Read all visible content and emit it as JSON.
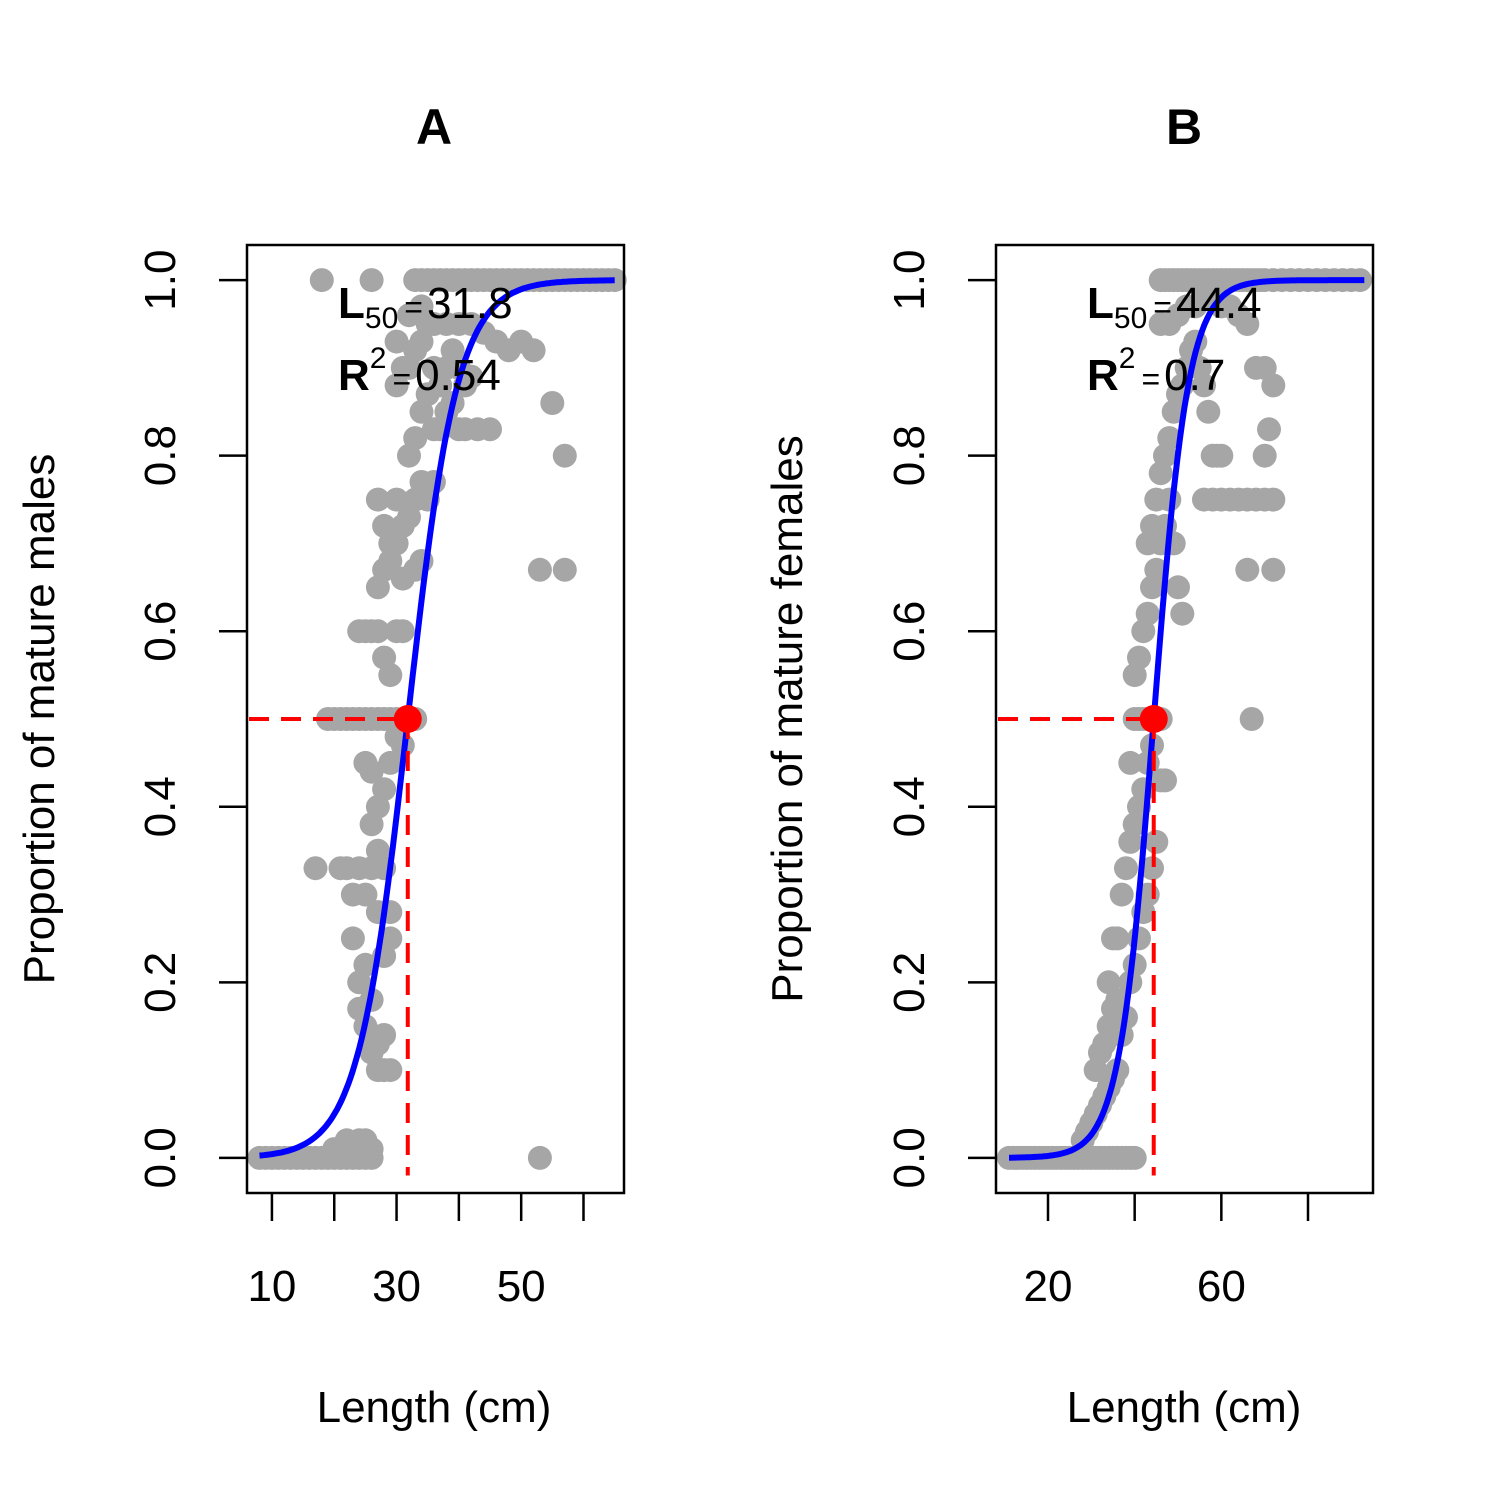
{
  "colors": {
    "points": "#a6a6a6",
    "curve": "#0000ff",
    "reference": "#ff0000",
    "frame": "#000000"
  },
  "chart_data": [
    {
      "type": "scatter",
      "title": "A",
      "xlabel": "Length (cm)",
      "ylabel": "Proportion of mature males",
      "xlim": [
        6,
        66.5
      ],
      "ylim": [
        -0.04,
        1.04
      ],
      "xticks": [
        10,
        20,
        30,
        40,
        50,
        60
      ],
      "xtick_labels": [
        "10",
        "",
        "30",
        "",
        "50",
        ""
      ],
      "yticks": [
        0.0,
        0.2,
        0.4,
        0.6,
        0.8,
        1.0
      ],
      "ytick_labels": [
        "0.0",
        "0.2",
        "0.4",
        "0.6",
        "0.8",
        "1.0"
      ],
      "grid": false,
      "annotation": {
        "l50_symbol": "L",
        "l50_subscript": "50",
        "l50_value": "31.8",
        "r2_symbol": "R",
        "r2_superscript": "2",
        "r2_value": "0.54",
        "equals": "="
      },
      "l50": 31.8,
      "logistic_fit": {
        "l50": 31.8,
        "slope": 0.25,
        "x_range": [
          8,
          65
        ]
      },
      "points": [
        [
          8,
          0
        ],
        [
          9,
          0
        ],
        [
          10,
          0
        ],
        [
          11,
          0
        ],
        [
          12,
          0
        ],
        [
          13,
          0
        ],
        [
          14,
          0
        ],
        [
          15,
          0
        ],
        [
          16,
          0
        ],
        [
          17,
          0
        ],
        [
          18,
          0
        ],
        [
          19,
          0
        ],
        [
          20,
          0
        ],
        [
          21,
          0
        ],
        [
          22,
          0
        ],
        [
          23,
          0
        ],
        [
          24,
          0
        ],
        [
          25,
          0
        ],
        [
          26,
          0
        ],
        [
          22,
          0.02
        ],
        [
          23,
          0.01
        ],
        [
          24,
          0.02
        ],
        [
          25,
          0.02
        ],
        [
          26,
          0.01
        ],
        [
          21,
          0.01
        ],
        [
          20,
          0.01
        ],
        [
          17,
          0.33
        ],
        [
          21,
          0.33
        ],
        [
          22,
          0.33
        ],
        [
          23,
          0.3
        ],
        [
          24,
          0.33
        ],
        [
          25,
          0.3
        ],
        [
          26,
          0.33
        ],
        [
          27,
          0.35
        ],
        [
          28,
          0.33
        ],
        [
          23,
          0.25
        ],
        [
          24,
          0.2
        ],
        [
          25,
          0.22
        ],
        [
          26,
          0.18
        ],
        [
          24,
          0.17
        ],
        [
          25,
          0.15
        ],
        [
          26,
          0.14
        ],
        [
          27,
          0.1
        ],
        [
          28,
          0.1
        ],
        [
          29,
          0.1
        ],
        [
          26,
          0.12
        ],
        [
          27,
          0.13
        ],
        [
          28,
          0.14
        ],
        [
          28,
          0.23
        ],
        [
          29,
          0.25
        ],
        [
          27,
          0.28
        ],
        [
          29,
          0.28
        ],
        [
          26,
          0.38
        ],
        [
          27,
          0.4
        ],
        [
          28,
          0.42
        ],
        [
          29,
          0.45
        ],
        [
          25,
          0.45
        ],
        [
          26,
          0.44
        ],
        [
          30,
          0.5
        ],
        [
          31,
          0.5
        ],
        [
          32,
          0.5
        ],
        [
          29,
          0.5
        ],
        [
          28,
          0.5
        ],
        [
          27,
          0.5
        ],
        [
          26,
          0.5
        ],
        [
          25,
          0.5
        ],
        [
          24,
          0.5
        ],
        [
          23,
          0.5
        ],
        [
          22,
          0.5
        ],
        [
          21,
          0.5
        ],
        [
          20,
          0.5
        ],
        [
          19,
          0.5
        ],
        [
          33,
          0.5
        ],
        [
          31,
          0.47
        ],
        [
          30,
          0.48
        ],
        [
          24,
          0.6
        ],
        [
          25,
          0.6
        ],
        [
          26,
          0.6
        ],
        [
          27,
          0.6
        ],
        [
          28,
          0.57
        ],
        [
          29,
          0.55
        ],
        [
          30,
          0.6
        ],
        [
          31,
          0.6
        ],
        [
          27,
          0.65
        ],
        [
          28,
          0.67
        ],
        [
          29,
          0.68
        ],
        [
          30,
          0.7
        ],
        [
          31,
          0.72
        ],
        [
          27,
          0.75
        ],
        [
          28,
          0.72
        ],
        [
          29,
          0.7
        ],
        [
          30,
          0.75
        ],
        [
          32,
          0.73
        ],
        [
          33,
          0.75
        ],
        [
          34,
          0.77
        ],
        [
          35,
          0.75
        ],
        [
          36,
          0.77
        ],
        [
          31,
          0.66
        ],
        [
          33,
          0.67
        ],
        [
          34,
          0.68
        ],
        [
          32,
          0.8
        ],
        [
          33,
          0.82
        ],
        [
          34,
          0.85
        ],
        [
          35,
          0.87
        ],
        [
          36,
          0.83
        ],
        [
          37,
          0.83
        ],
        [
          38,
          0.85
        ],
        [
          39,
          0.86
        ],
        [
          40,
          0.83
        ],
        [
          41,
          0.83
        ],
        [
          43,
          0.83
        ],
        [
          45,
          0.83
        ],
        [
          30,
          0.88
        ],
        [
          31,
          0.9
        ],
        [
          32,
          0.9
        ],
        [
          33,
          0.92
        ],
        [
          34,
          0.93
        ],
        [
          35,
          0.95
        ],
        [
          36,
          0.9
        ],
        [
          37,
          0.88
        ],
        [
          38,
          0.9
        ],
        [
          39,
          0.92
        ],
        [
          40,
          0.9
        ],
        [
          41,
          0.88
        ],
        [
          42,
          0.89
        ],
        [
          30,
          0.93
        ],
        [
          32,
          0.96
        ],
        [
          34,
          0.97
        ],
        [
          36,
          0.95
        ],
        [
          38,
          0.95
        ],
        [
          40,
          0.95
        ],
        [
          42,
          0.95
        ],
        [
          44,
          0.94
        ],
        [
          46,
          0.93
        ],
        [
          48,
          0.92
        ],
        [
          50,
          0.93
        ],
        [
          52,
          0.92
        ],
        [
          18,
          1
        ],
        [
          26,
          1
        ],
        [
          33,
          1
        ],
        [
          34,
          1
        ],
        [
          35,
          1
        ],
        [
          36,
          1
        ],
        [
          37,
          1
        ],
        [
          38,
          1
        ],
        [
          39,
          1
        ],
        [
          40,
          1
        ],
        [
          41,
          1
        ],
        [
          42,
          1
        ],
        [
          43,
          1
        ],
        [
          44,
          1
        ],
        [
          45,
          1
        ],
        [
          46,
          1
        ],
        [
          47,
          1
        ],
        [
          48,
          1
        ],
        [
          49,
          1
        ],
        [
          50,
          1
        ],
        [
          51,
          1
        ],
        [
          52,
          1
        ],
        [
          53,
          1
        ],
        [
          54,
          1
        ],
        [
          55,
          1
        ],
        [
          56,
          1
        ],
        [
          57,
          1
        ],
        [
          58,
          1
        ],
        [
          59,
          1
        ],
        [
          60,
          1
        ],
        [
          61,
          1
        ],
        [
          62,
          1
        ],
        [
          63,
          1
        ],
        [
          64,
          1
        ],
        [
          65,
          1
        ],
        [
          55,
          0.86
        ],
        [
          57,
          0.8
        ],
        [
          53,
          0.67
        ],
        [
          57,
          0.67
        ],
        [
          53,
          0
        ]
      ]
    },
    {
      "type": "scatter",
      "title": "B",
      "xlabel": "Length (cm)",
      "ylabel": "Proportion of mature females",
      "xlim": [
        8,
        95
      ],
      "ylim": [
        -0.04,
        1.04
      ],
      "xticks": [
        20,
        40,
        60,
        80
      ],
      "xtick_labels": [
        "20",
        "",
        "60",
        ""
      ],
      "yticks": [
        0.0,
        0.2,
        0.4,
        0.6,
        0.8,
        1.0
      ],
      "ytick_labels": [
        "0.0",
        "0.2",
        "0.4",
        "0.6",
        "0.8",
        "1.0"
      ],
      "grid": false,
      "annotation": {
        "l50_symbol": "L",
        "l50_subscript": "50",
        "l50_value": "44.4",
        "r2_symbol": "R",
        "r2_superscript": "2",
        "r2_value": "0.7",
        "equals": "="
      },
      "l50": 44.4,
      "logistic_fit": {
        "l50": 44.4,
        "slope": 0.25,
        "x_range": [
          11,
          93
        ]
      },
      "points": [
        [
          11,
          0
        ],
        [
          12,
          0
        ],
        [
          13,
          0
        ],
        [
          14,
          0
        ],
        [
          15,
          0
        ],
        [
          16,
          0
        ],
        [
          17,
          0
        ],
        [
          18,
          0
        ],
        [
          19,
          0
        ],
        [
          20,
          0
        ],
        [
          21,
          0
        ],
        [
          22,
          0
        ],
        [
          23,
          0
        ],
        [
          24,
          0
        ],
        [
          25,
          0
        ],
        [
          26,
          0
        ],
        [
          27,
          0
        ],
        [
          28,
          0
        ],
        [
          29,
          0
        ],
        [
          30,
          0
        ],
        [
          31,
          0
        ],
        [
          32,
          0
        ],
        [
          33,
          0
        ],
        [
          34,
          0
        ],
        [
          35,
          0
        ],
        [
          36,
          0
        ],
        [
          37,
          0
        ],
        [
          38,
          0
        ],
        [
          39,
          0
        ],
        [
          40,
          0
        ],
        [
          28,
          0.02
        ],
        [
          29,
          0.03
        ],
        [
          30,
          0.04
        ],
        [
          31,
          0.05
        ],
        [
          32,
          0.06
        ],
        [
          33,
          0.07
        ],
        [
          34,
          0.08
        ],
        [
          35,
          0.09
        ],
        [
          36,
          0.1
        ],
        [
          31,
          0.1
        ],
        [
          32,
          0.12
        ],
        [
          33,
          0.13
        ],
        [
          34,
          0.15
        ],
        [
          35,
          0.17
        ],
        [
          36,
          0.18
        ],
        [
          37,
          0.14
        ],
        [
          38,
          0.16
        ],
        [
          39,
          0.2
        ],
        [
          40,
          0.22
        ],
        [
          41,
          0.25
        ],
        [
          42,
          0.28
        ],
        [
          43,
          0.3
        ],
        [
          44,
          0.33
        ],
        [
          45,
          0.36
        ],
        [
          34,
          0.2
        ],
        [
          35,
          0.25
        ],
        [
          36,
          0.25
        ],
        [
          37,
          0.3
        ],
        [
          38,
          0.33
        ],
        [
          39,
          0.36
        ],
        [
          40,
          0.38
        ],
        [
          41,
          0.4
        ],
        [
          42,
          0.42
        ],
        [
          43,
          0.45
        ],
        [
          44,
          0.47
        ],
        [
          46,
          0.43
        ],
        [
          39,
          0.45
        ],
        [
          40,
          0.5
        ],
        [
          41,
          0.5
        ],
        [
          42,
          0.5
        ],
        [
          43,
          0.5
        ],
        [
          44,
          0.5
        ],
        [
          45,
          0.5
        ],
        [
          46,
          0.5
        ],
        [
          40,
          0.55
        ],
        [
          41,
          0.57
        ],
        [
          42,
          0.6
        ],
        [
          43,
          0.62
        ],
        [
          44,
          0.65
        ],
        [
          45,
          0.67
        ],
        [
          46,
          0.7
        ],
        [
          47,
          0.72
        ],
        [
          48,
          0.75
        ],
        [
          49,
          0.7
        ],
        [
          50,
          0.65
        ],
        [
          51,
          0.62
        ],
        [
          43,
          0.7
        ],
        [
          44,
          0.72
        ],
        [
          45,
          0.75
        ],
        [
          46,
          0.78
        ],
        [
          47,
          0.8
        ],
        [
          48,
          0.82
        ],
        [
          49,
          0.85
        ],
        [
          50,
          0.87
        ],
        [
          51,
          0.88
        ],
        [
          52,
          0.9
        ],
        [
          53,
          0.92
        ],
        [
          54,
          0.93
        ],
        [
          55,
          0.9
        ],
        [
          56,
          0.88
        ],
        [
          57,
          0.85
        ],
        [
          58,
          0.8
        ],
        [
          59,
          0.8
        ],
        [
          60,
          0.8
        ],
        [
          56,
          0.75
        ],
        [
          58,
          0.75
        ],
        [
          60,
          0.75
        ],
        [
          62,
          0.75
        ],
        [
          64,
          0.75
        ],
        [
          66,
          0.75
        ],
        [
          68,
          0.75
        ],
        [
          70,
          0.75
        ],
        [
          72,
          0.75
        ],
        [
          70,
          0.8
        ],
        [
          71,
          0.83
        ],
        [
          46,
          0.95
        ],
        [
          48,
          0.95
        ],
        [
          50,
          0.96
        ],
        [
          52,
          0.97
        ],
        [
          54,
          0.97
        ],
        [
          56,
          0.98
        ],
        [
          58,
          0.98
        ],
        [
          60,
          0.97
        ],
        [
          62,
          0.97
        ],
        [
          64,
          0.96
        ],
        [
          66,
          0.95
        ],
        [
          68,
          0.9
        ],
        [
          70,
          0.9
        ],
        [
          72,
          0.88
        ],
        [
          46,
          1
        ],
        [
          47,
          1
        ],
        [
          48,
          1
        ],
        [
          49,
          1
        ],
        [
          50,
          1
        ],
        [
          51,
          1
        ],
        [
          52,
          1
        ],
        [
          53,
          1
        ],
        [
          54,
          1
        ],
        [
          55,
          1
        ],
        [
          56,
          1
        ],
        [
          57,
          1
        ],
        [
          58,
          1
        ],
        [
          59,
          1
        ],
        [
          60,
          1
        ],
        [
          61,
          1
        ],
        [
          62,
          1
        ],
        [
          63,
          1
        ],
        [
          64,
          1
        ],
        [
          65,
          1
        ],
        [
          66,
          1
        ],
        [
          67,
          1
        ],
        [
          68,
          1
        ],
        [
          69,
          1
        ],
        [
          70,
          1
        ],
        [
          72,
          1
        ],
        [
          74,
          1
        ],
        [
          76,
          1
        ],
        [
          78,
          1
        ],
        [
          80,
          1
        ],
        [
          82,
          1
        ],
        [
          84,
          1
        ],
        [
          86,
          1
        ],
        [
          88,
          1
        ],
        [
          90,
          1
        ],
        [
          92,
          1
        ],
        [
          47,
          0.43
        ],
        [
          66,
          0.67
        ],
        [
          72,
          0.67
        ],
        [
          67,
          0.5
        ]
      ]
    }
  ]
}
